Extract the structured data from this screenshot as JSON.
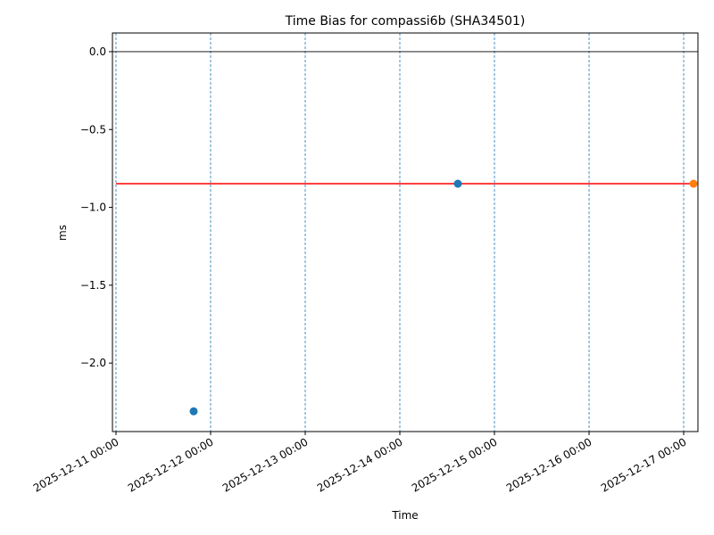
{
  "chart_data": {
    "type": "scatter",
    "title": "Time Bias for compassi6b (SHA34501)",
    "x_label": "Time",
    "y_label": "ms",
    "xlim": [
      "2025-12-10 23:06",
      "2025-12-17 03:37"
    ],
    "xticks": [
      "2025-12-11 00:00",
      "2025-12-12 00:00",
      "2025-12-13 00:00",
      "2025-12-14 00:00",
      "2025-12-15 00:00",
      "2025-12-16 00:00",
      "2025-12-17 00:00"
    ],
    "ylim": [
      -2.44,
      0.12
    ],
    "yticks": [
      {
        "value": 0,
        "label": "0.0"
      },
      {
        "value": -0.5,
        "label": "−0.5"
      },
      {
        "value": -1,
        "label": "−1.0"
      },
      {
        "value": -1.5,
        "label": "−1.5"
      },
      {
        "value": -2,
        "label": "−2.0"
      }
    ],
    "grid": "x",
    "grid_color": "#1f77b4",
    "hline": 0,
    "hline_color": "#000000",
    "series": [
      {
        "kind": "scatter",
        "color": "#1f77b4",
        "x": [
          "2025-12-11 19:42",
          "2025-12-14 14:43"
        ],
        "values": [
          -2.31,
          -0.848
        ]
      },
      {
        "kind": "scatter",
        "color": "#ff7f0e",
        "x": [
          "2025-12-17 02:30"
        ],
        "values": [
          -0.848
        ]
      },
      {
        "kind": "line",
        "color": "#ff0000",
        "x": [
          "2025-12-11 00:00",
          "2025-12-17 02:30"
        ],
        "values": [
          -0.848,
          -0.848
        ]
      }
    ]
  }
}
